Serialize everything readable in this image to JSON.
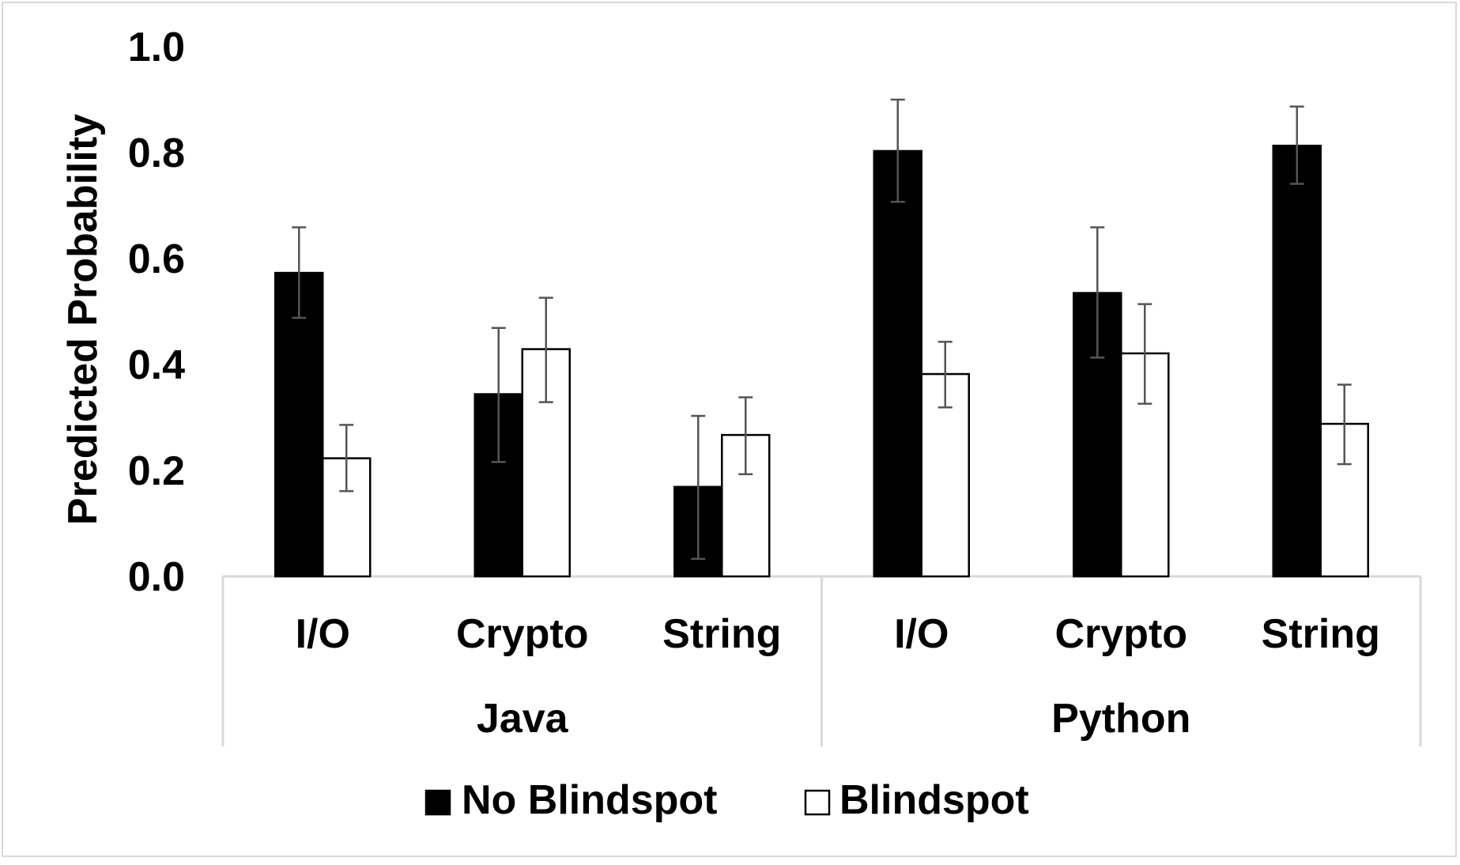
{
  "chart_data": {
    "type": "bar",
    "ylabel": "Predicted Probability",
    "ylim": [
      0,
      1.0
    ],
    "yticks": [
      "0.0",
      "0.2",
      "0.4",
      "0.6",
      "0.8",
      "1.0"
    ],
    "groups": [
      {
        "label": "Java",
        "categories": [
          "I/O",
          "Crypto",
          "String"
        ]
      },
      {
        "label": "Python",
        "categories": [
          "I/O",
          "Crypto",
          "String"
        ]
      }
    ],
    "series": [
      {
        "name": "No Blindspot",
        "color": "#000000",
        "values": [
          0.573,
          0.344,
          0.169,
          0.803,
          0.535,
          0.813
        ],
        "error_low": [
          0.488,
          0.216,
          0.033,
          0.707,
          0.413,
          0.741
        ],
        "error_high": [
          0.659,
          0.469,
          0.303,
          0.9,
          0.659,
          0.887
        ]
      },
      {
        "name": "Blindspot",
        "color": "#ffffff",
        "values": [
          0.223,
          0.429,
          0.267,
          0.382,
          0.421,
          0.288
        ],
        "error_low": [
          0.161,
          0.329,
          0.193,
          0.319,
          0.326,
          0.212
        ],
        "error_high": [
          0.286,
          0.526,
          0.338,
          0.443,
          0.514,
          0.362
        ]
      }
    ],
    "legend": {
      "position": "bottom"
    },
    "grid": false
  }
}
